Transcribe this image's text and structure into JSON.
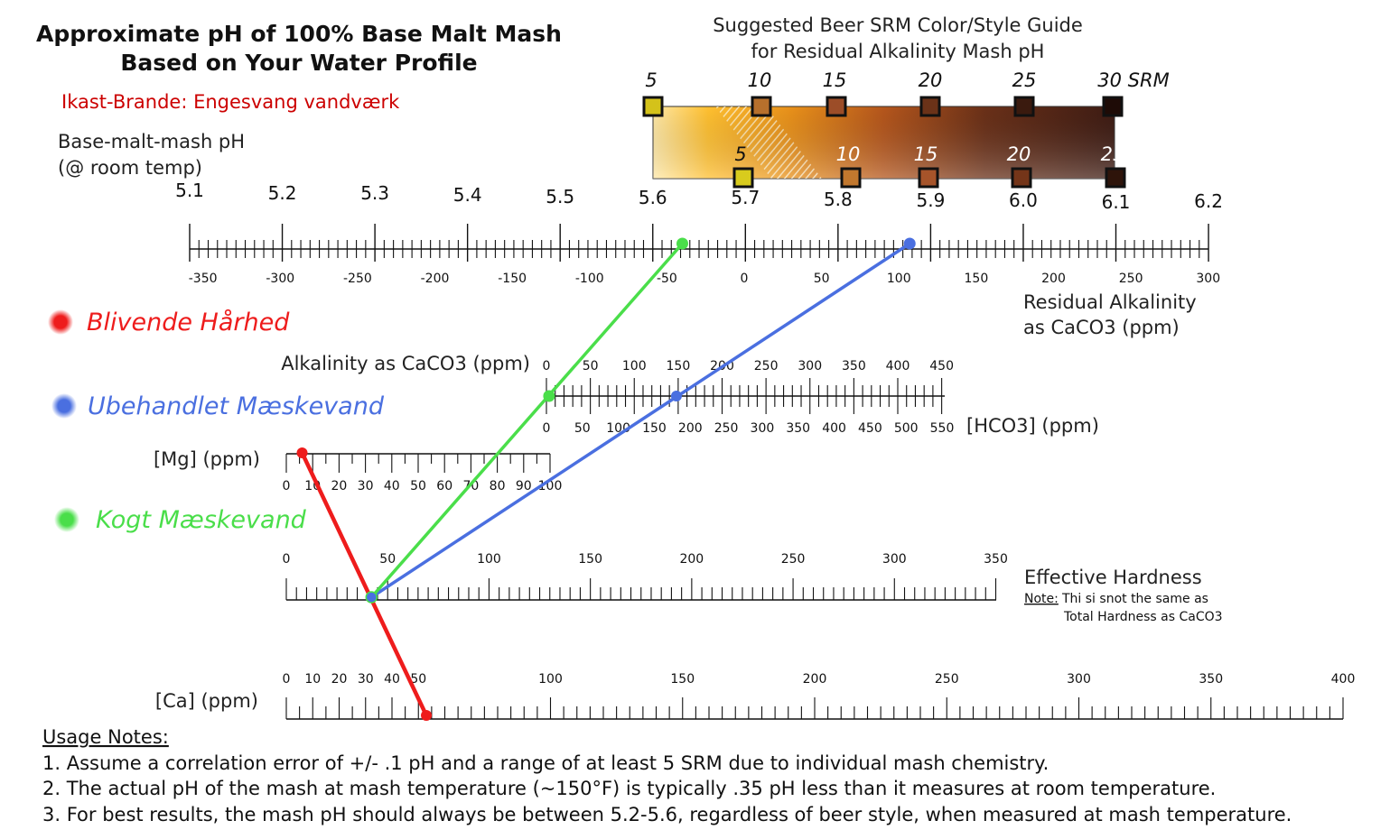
{
  "title_line1": "Approximate pH of 100% Base Malt Mash",
  "title_line2": "Based on Your Water Profile",
  "location": "Ikast-Brande: Engesvang vandværk",
  "srm_guide": {
    "title_line1": "Suggested Beer SRM Color/Style Guide",
    "title_line2": "for Residual Alkalinity Mash pH",
    "top_labels": [
      "5",
      "10",
      "15",
      "20",
      "25",
      "30 SRM"
    ],
    "bottom_labels": [
      "5",
      "10",
      "15",
      "20",
      "25"
    ],
    "top_colors": [
      "#d4c21a",
      "#b7702c",
      "#9c4d28",
      "#6b3218",
      "#3a1a0e",
      "#1e0b06"
    ],
    "bottom_colors": [
      "#d8cb1d",
      "#c2782e",
      "#a6542a",
      "#743519",
      "#2e140a"
    ]
  },
  "axes": {
    "ph": {
      "label_line1": "Base-malt-mash pH",
      "label_line2": "(@ room temp)",
      "ticks": [
        "5.1",
        "5.2",
        "5.3",
        "5.4",
        "5.5",
        "5.6",
        "5.7",
        "5.8",
        "5.9",
        "6.0",
        "6.1",
        "6.2"
      ]
    },
    "ra": {
      "label_line1": "Residual Alkalinity",
      "label_line2": "as CaCO3 (ppm)",
      "ticks": [
        "-350",
        "-300",
        "-250",
        "-200",
        "-150",
        "-100",
        "-50",
        "0",
        "50",
        "100",
        "150",
        "200",
        "250",
        "300"
      ]
    },
    "alkalinity": {
      "label": "Alkalinity as CaCO3 (ppm)",
      "ticks": [
        "0",
        "50",
        "100",
        "150",
        "200",
        "250",
        "300",
        "350",
        "400",
        "450"
      ]
    },
    "hco3": {
      "label": "[HCO3] (ppm)",
      "ticks": [
        "0",
        "50",
        "100",
        "150",
        "200",
        "250",
        "300",
        "350",
        "400",
        "450",
        "500",
        "550"
      ]
    },
    "mg": {
      "label": "[Mg] (ppm)",
      "ticks": [
        "0",
        "10",
        "20",
        "30",
        "40",
        "50",
        "60",
        "70",
        "80",
        "90",
        "100"
      ]
    },
    "hardness": {
      "label": "Effective Hardness",
      "note_prefix": "Note:",
      "note_line1": "Thi si snot the same as",
      "note_line2": "Total Hardness as CaCO3",
      "ticks": [
        "0",
        "50",
        "100",
        "150",
        "200",
        "250",
        "300",
        "350"
      ]
    },
    "ca": {
      "label": "[Ca] (ppm)",
      "ticks": [
        "0",
        "10",
        "20",
        "30",
        "40",
        "50",
        "100",
        "150",
        "200",
        "250",
        "300",
        "350",
        "400"
      ]
    }
  },
  "legend": [
    {
      "label": "Blivende Hårhed",
      "color": "#ee1c1c"
    },
    {
      "label": "Ubehandlet Mæskevand",
      "color": "#4a6fe0"
    },
    {
      "label": "Kogt Mæskevand",
      "color": "#4ade4a"
    }
  ],
  "readings": {
    "blivende_hardhed": {
      "mg_ppm": 6,
      "ca_ppm": 53,
      "effective_hardness_ppm": 42
    },
    "ubehandlet": {
      "alkalinity_ppm": 148,
      "effective_hardness_ppm": 42,
      "residual_alkalinity_ppm": 107
    },
    "kogt": {
      "alkalinity_ppm": 3,
      "effective_hardness_ppm": 42,
      "residual_alkalinity_ppm": -40
    }
  },
  "usage_notes": {
    "heading": "Usage Notes:",
    "items": [
      "1. Assume a correlation error of +/- .1 pH and a range of at least 5 SRM due to individual mash chemistry.",
      "2. The actual pH of the mash at mash temperature (~150°F) is typically .35 pH less than it measures at room temperature.",
      "3. For best results, the mash pH should always be between 5.2-5.6, regardless of beer style, when measured at mash temperature."
    ]
  }
}
